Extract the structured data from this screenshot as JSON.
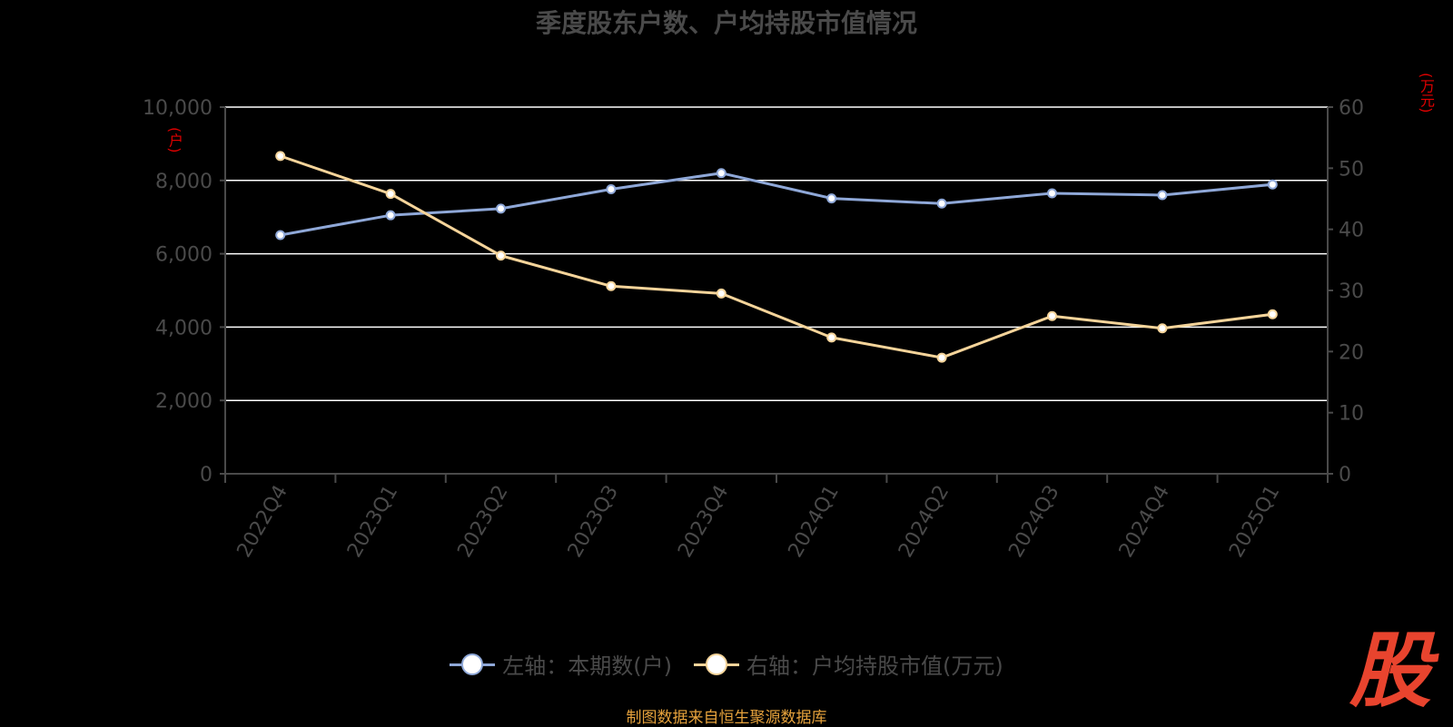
{
  "chart_data": {
    "type": "line",
    "title": "季度股东户数、户均持股市值情况",
    "categories": [
      "2022Q4",
      "2023Q1",
      "2023Q2",
      "2023Q3",
      "2023Q4",
      "2024Q1",
      "2024Q2",
      "2024Q3",
      "2024Q4",
      "2025Q1"
    ],
    "series": [
      {
        "name": "左轴：本期数(户)",
        "axis": "left",
        "color": "#8fa8d8",
        "values": [
          6510,
          7050,
          7230,
          7760,
          8200,
          7510,
          7370,
          7650,
          7600,
          7890
        ]
      },
      {
        "name": "右轴：户均持股市值(万元)",
        "axis": "right",
        "color": "#f5d49a",
        "values": [
          52.0,
          45.8,
          35.7,
          30.7,
          29.5,
          22.3,
          19.0,
          25.8,
          23.8,
          26.1
        ]
      }
    ],
    "y_left": {
      "unit_label": "(户)",
      "ylim": [
        0,
        10000
      ],
      "ticks": [
        "0",
        "2,000",
        "4,000",
        "6,000",
        "8,000",
        "10,000"
      ]
    },
    "y_right": {
      "unit_label": "(万元)",
      "ylim": [
        0,
        60
      ],
      "ticks": [
        "0",
        "10",
        "20",
        "30",
        "40",
        "50",
        "60"
      ]
    },
    "grid": true,
    "legend_position": "bottom-center"
  },
  "source_note": "制图数据来自恒生聚源数据库",
  "brand_logo": "股",
  "colors": {
    "background": "#000000",
    "title": "#4a4a4a",
    "axis_text": "#4a4a4a",
    "grid": "#ffffff",
    "unit": "#e00000",
    "source": "#e6a23c",
    "logo": "#e8442e"
  }
}
